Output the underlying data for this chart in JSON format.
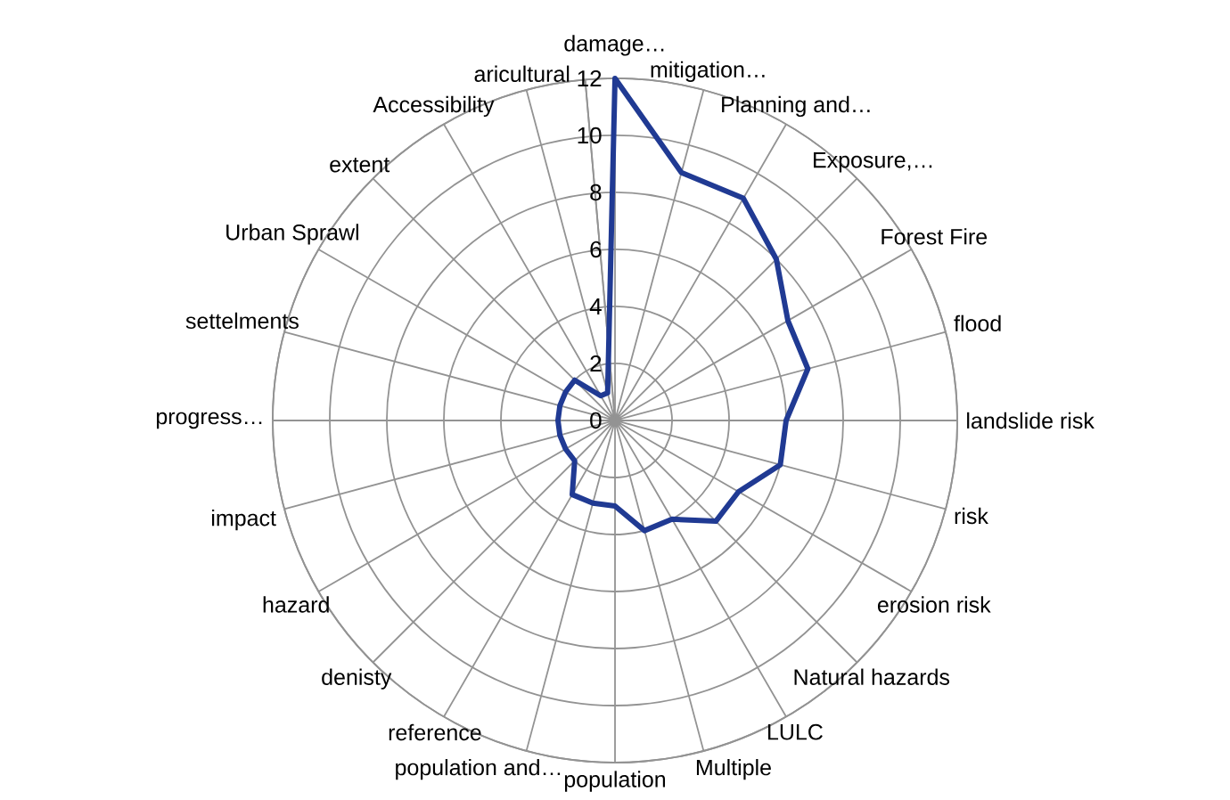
{
  "chart_data": {
    "type": "radar",
    "categories": [
      "damage…",
      "mitigation…",
      "Planning and…",
      "Exposure,…",
      "Forest Fire",
      "flood",
      "landslide risk",
      "risk",
      "erosion risk",
      "Natural hazards",
      "LULC",
      "Multiple",
      "population",
      "population and…",
      "reference",
      "denisty",
      "hazard",
      "impact",
      "progress…",
      "settelments",
      "Urban Sprawl",
      "extent",
      "Accessibility",
      "aricultural"
    ],
    "series": [
      {
        "color": "#203a93",
        "values": [
          12,
          9,
          9,
          8,
          7,
          7,
          6,
          6,
          5,
          5,
          4,
          4,
          3,
          3,
          3,
          2,
          2,
          2,
          2,
          2,
          2,
          2,
          1,
          1
        ]
      }
    ],
    "ylim": [
      0,
      12
    ],
    "yticks": [
      0,
      2,
      4,
      6,
      8,
      10,
      12
    ],
    "grid": true
  }
}
